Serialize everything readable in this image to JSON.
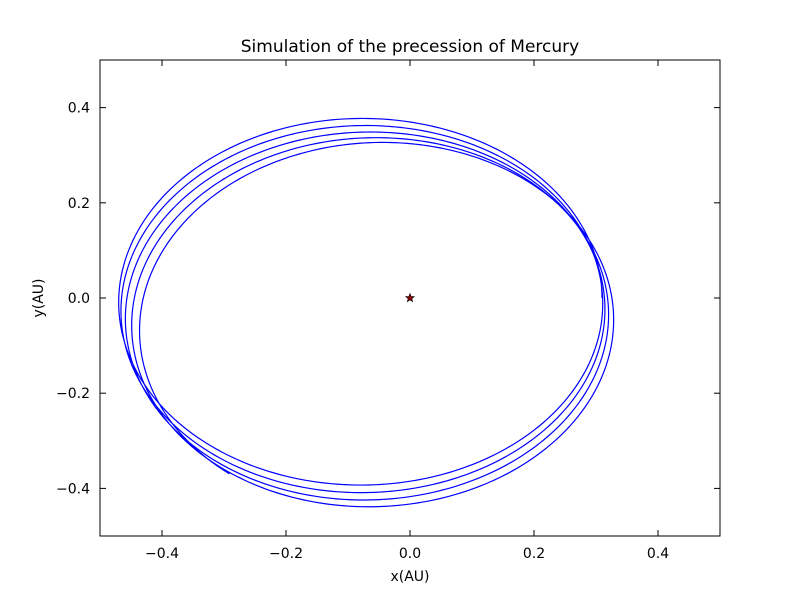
{
  "chart_data": {
    "type": "line",
    "title": "Simulation of the precession of Mercury",
    "xlabel": "x(AU)",
    "ylabel": "y(AU)",
    "xlim": [
      -0.5,
      0.5
    ],
    "ylim": [
      -0.5,
      0.5
    ],
    "xticks": [
      -0.4,
      -0.2,
      0.0,
      0.2,
      0.4
    ],
    "xtick_labels": [
      "−0.4",
      "−0.2",
      "0.0",
      "0.2",
      "0.4"
    ],
    "yticks": [
      -0.4,
      -0.2,
      0.0,
      0.2,
      0.4
    ],
    "ytick_labels": [
      "−0.4",
      "−0.2",
      "0.0",
      "0.2",
      "0.4"
    ],
    "grid": false,
    "series": [
      {
        "kind": "orbit-trace",
        "color": "#0000ff",
        "orbit_ellipse": {
          "semi_major_axis": 0.39,
          "eccentricity": 0.206,
          "focus": [
            0.0,
            0.0
          ],
          "start_perihelion_angle_deg": 0,
          "start_true_anomaly_deg": 0,
          "precession_deg_per_orbit": 11.5,
          "orbits": 4.5
        }
      },
      {
        "kind": "star-marker",
        "x": [
          0.0
        ],
        "y": [
          0.0
        ],
        "color": "#8b0000"
      }
    ]
  }
}
